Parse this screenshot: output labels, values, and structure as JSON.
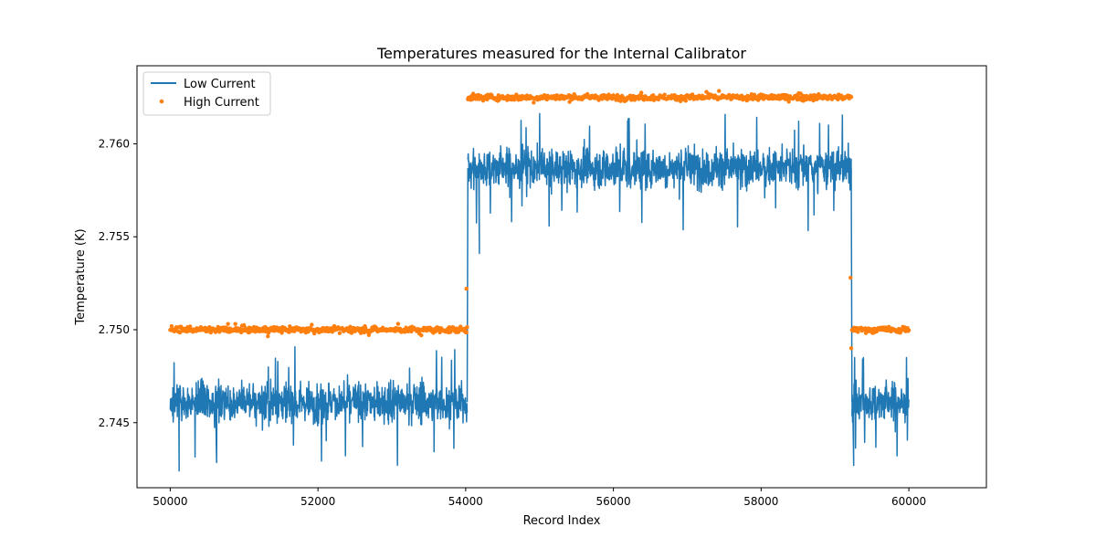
{
  "chart_data": {
    "type": "line",
    "title": "Temperatures measured for the Internal Calibrator",
    "xlabel": "Record Index",
    "ylabel": "Temperature (K)",
    "xlim": [
      49550,
      61050
    ],
    "ylim": [
      2.7415,
      2.7642
    ],
    "xticks": [
      50000,
      52000,
      54000,
      56000,
      58000,
      60000
    ],
    "xtick_labels": [
      "50000",
      "52000",
      "54000",
      "56000",
      "58000",
      "60000"
    ],
    "yticks": [
      2.745,
      2.75,
      2.755,
      2.76
    ],
    "ytick_labels": [
      "2.745",
      "2.750",
      "2.755",
      "2.760"
    ],
    "grid": false,
    "legend_position": "top-left",
    "series": [
      {
        "name": "Low Current",
        "kind": "line",
        "color": "#1f77b4",
        "segments": [
          {
            "x_start": 50000,
            "x_end": 54020,
            "mean": 2.7461,
            "noise": 0.0009,
            "min": 2.7424,
            "max": 2.7495
          },
          {
            "x_start": 54030,
            "x_end": 59220,
            "mean": 2.7587,
            "noise": 0.0009,
            "min": 2.7541,
            "max": 2.7625
          },
          {
            "x_start": 59230,
            "x_end": 60000,
            "mean": 2.7461,
            "noise": 0.0009,
            "min": 2.7427,
            "max": 2.7485
          }
        ]
      },
      {
        "name": "High Current",
        "kind": "scatter",
        "color": "#ff7f0e",
        "segments": [
          {
            "x_start": 50000,
            "x_end": 54020,
            "mean": 2.75,
            "noise": 0.00013
          },
          {
            "x_start": 54030,
            "x_end": 59220,
            "mean": 2.7625,
            "noise": 0.00013
          },
          {
            "x_start": 59230,
            "x_end": 60000,
            "mean": 2.75,
            "noise": 0.00013
          }
        ],
        "transition_points": [
          {
            "x": 54010,
            "y": 2.7522
          },
          {
            "x": 59210,
            "y": 2.7528
          },
          {
            "x": 59220,
            "y": 2.749
          }
        ]
      }
    ]
  }
}
